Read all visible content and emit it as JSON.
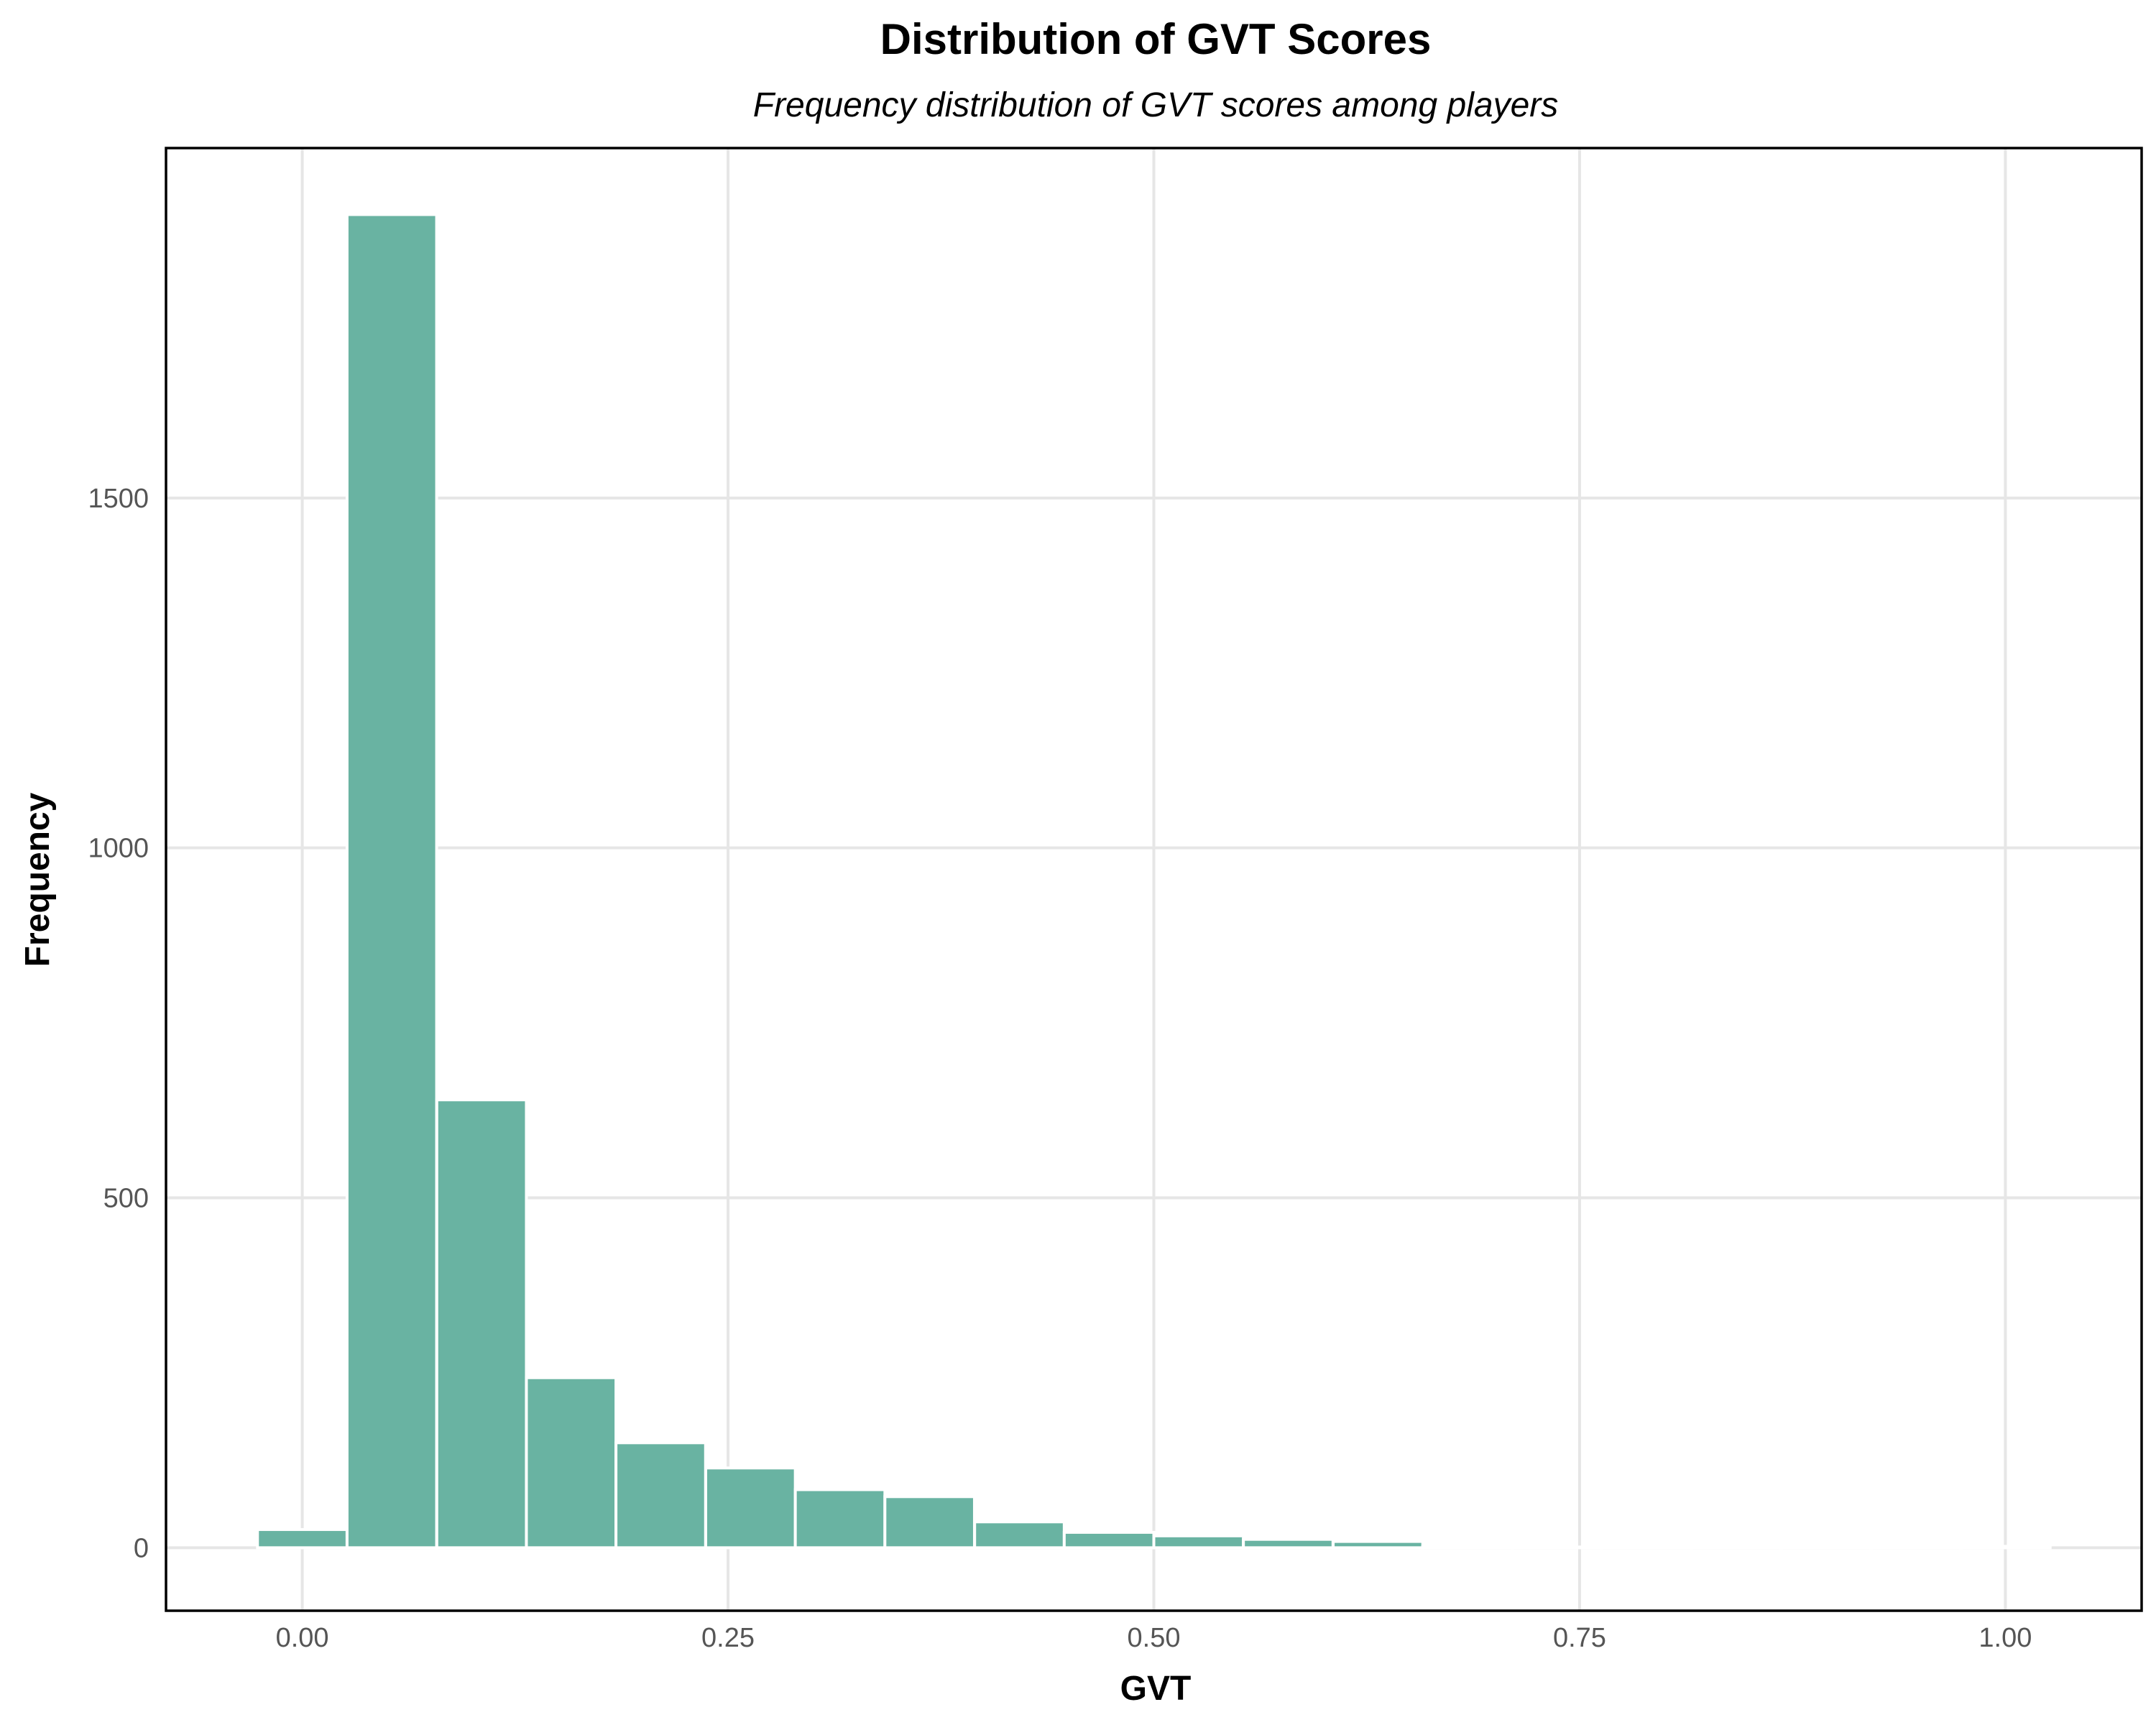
{
  "chart_data": {
    "type": "bar",
    "title": "Distribution of GVT Scores",
    "subtitle": "Frequency distribution of GVT scores among players",
    "xlabel": "GVT",
    "ylabel": "Frequency",
    "xlim": [
      -0.08,
      1.08
    ],
    "ylim": [
      -90,
      2000
    ],
    "x_ticks": [
      0.0,
      0.25,
      0.5,
      0.75,
      1.0
    ],
    "x_tick_labels": [
      "0.00",
      "0.25",
      "0.50",
      "0.75",
      "1.00"
    ],
    "y_ticks": [
      0,
      500,
      1000,
      1500
    ],
    "y_tick_labels": [
      "0",
      "500",
      "1000",
      "1500"
    ],
    "bin_width": 0.0526,
    "bins": [
      {
        "x": 0.0,
        "count": 26
      },
      {
        "x": 0.0526,
        "count": 1905
      },
      {
        "x": 0.1053,
        "count": 640
      },
      {
        "x": 0.1579,
        "count": 243
      },
      {
        "x": 0.2105,
        "count": 150
      },
      {
        "x": 0.2632,
        "count": 114
      },
      {
        "x": 0.3158,
        "count": 83
      },
      {
        "x": 0.3684,
        "count": 73
      },
      {
        "x": 0.4211,
        "count": 37
      },
      {
        "x": 0.4737,
        "count": 22
      },
      {
        "x": 0.5263,
        "count": 17
      },
      {
        "x": 0.5789,
        "count": 12
      },
      {
        "x": 0.6316,
        "count": 9
      },
      {
        "x": 0.6842,
        "count": 2
      },
      {
        "x": 0.7368,
        "count": 1
      },
      {
        "x": 0.7895,
        "count": 1
      },
      {
        "x": 0.8421,
        "count": 2
      },
      {
        "x": 0.8947,
        "count": 1
      },
      {
        "x": 0.9474,
        "count": 1
      },
      {
        "x": 1.0,
        "count": 2
      }
    ],
    "grid": true,
    "colors": {
      "bar_fill": "#69b3a2",
      "bar_outline": "#ffffff",
      "grid": "#e6e6e6",
      "panel_border": "#000000"
    }
  }
}
